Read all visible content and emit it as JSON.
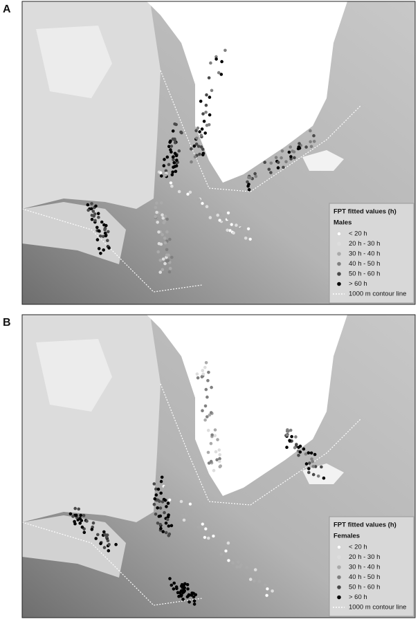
{
  "panels": [
    {
      "label": "A",
      "legend": {
        "title": "FPT fitted values (h)",
        "group": "Males",
        "items": [
          "< 20 h",
          "20 h - 30 h",
          "30 h - 40 h",
          "40 h - 50 h",
          "50 h - 60 h",
          "> 60 h"
        ],
        "contour": "1000 m contour line"
      }
    },
    {
      "label": "B",
      "legend": {
        "title": "FPT fitted values (h)",
        "group": "Females",
        "items": [
          "< 20 h",
          "20 h - 30 h",
          "30 h - 40 h",
          "40 h - 50 h",
          "50 h - 60 h",
          "> 60 h"
        ],
        "contour": "1000 m contour line"
      }
    }
  ]
}
